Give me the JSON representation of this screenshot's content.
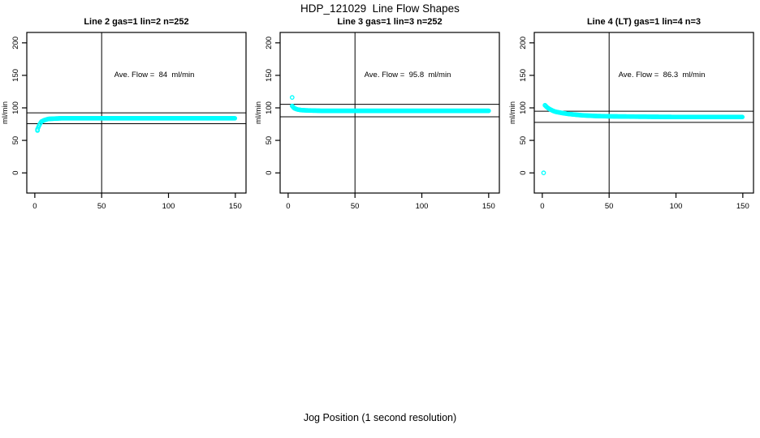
{
  "page": {
    "title": "HDP_121029  Line Flow Shapes",
    "xlabel": "Jog Position (1 second resolution)",
    "background_color": "#ffffff",
    "series_color": "#00ffff",
    "axis_color": "#000000"
  },
  "chart_data": [
    {
      "type": "scatter",
      "title": "Line 2 gas=1 lin=2 n=252",
      "annotation": "Ave. Flow =  84  ml/min",
      "ave_flow_ml_min": 84,
      "gas": 1,
      "lin": 2,
      "n": 252,
      "ylabel": "ml/min",
      "xticks": [
        0,
        50,
        100,
        150
      ],
      "yticks": [
        0,
        50,
        100,
        150,
        200
      ],
      "xlim": [
        -6,
        158
      ],
      "ylim": [
        -31,
        216
      ],
      "ref_lines_y": [
        92.4,
        75.6
      ],
      "ref_line_x": 50,
      "marker_step": 0.6,
      "curve_points": [
        [
          2,
          67
        ],
        [
          3,
          72
        ],
        [
          4,
          76
        ],
        [
          5,
          79
        ],
        [
          7,
          81
        ],
        [
          10,
          83
        ],
        [
          15,
          83.5
        ],
        [
          20,
          84
        ],
        [
          40,
          84
        ],
        [
          80,
          84
        ],
        [
          120,
          84
        ],
        [
          150,
          84
        ]
      ],
      "outlier_points": [
        [
          2,
          65
        ]
      ]
    },
    {
      "type": "scatter",
      "title": "Line 3 gas=1 lin=3 n=252",
      "annotation": "Ave. Flow =  95.8  ml/min",
      "ave_flow_ml_min": 95.8,
      "gas": 1,
      "lin": 3,
      "n": 252,
      "ylabel": "ml/min",
      "xticks": [
        0,
        50,
        100,
        150
      ],
      "yticks": [
        0,
        50,
        100,
        150,
        200
      ],
      "xlim": [
        -6,
        158
      ],
      "ylim": [
        -31,
        216
      ],
      "ref_lines_y": [
        105.4,
        86.2
      ],
      "ref_line_x": 50,
      "marker_step": 0.6,
      "curve_points": [
        [
          3,
          103
        ],
        [
          4,
          100.5
        ],
        [
          5,
          99
        ],
        [
          7,
          97.5
        ],
        [
          10,
          96.5
        ],
        [
          15,
          96
        ],
        [
          25,
          95.5
        ],
        [
          60,
          95.5
        ],
        [
          100,
          95.5
        ],
        [
          150,
          95.5
        ]
      ],
      "outlier_points": [
        [
          3,
          116
        ]
      ]
    },
    {
      "type": "scatter",
      "title": "Line 4 (LT) gas=1 lin=4 n=3",
      "annotation": "Ave. Flow =  86.3  ml/min",
      "ave_flow_ml_min": 86.3,
      "gas": 1,
      "lin": 4,
      "n": 3,
      "ylabel": "ml/min",
      "xticks": [
        0,
        50,
        100,
        150
      ],
      "yticks": [
        0,
        50,
        100,
        150,
        200
      ],
      "xlim": [
        -6,
        158
      ],
      "ylim": [
        -31,
        216
      ],
      "ref_lines_y": [
        94.9,
        77.7
      ],
      "ref_line_x": 50,
      "marker_step": 0.6,
      "curve_points": [
        [
          2,
          104
        ],
        [
          4,
          100
        ],
        [
          6,
          97.5
        ],
        [
          8,
          95.5
        ],
        [
          10,
          94
        ],
        [
          15,
          92
        ],
        [
          20,
          90.5
        ],
        [
          25,
          89.5
        ],
        [
          30,
          88.5
        ],
        [
          40,
          87.5
        ],
        [
          50,
          87
        ],
        [
          70,
          86.5
        ],
        [
          100,
          86
        ],
        [
          150,
          86
        ]
      ],
      "outlier_points": [
        [
          1,
          0
        ]
      ]
    }
  ]
}
